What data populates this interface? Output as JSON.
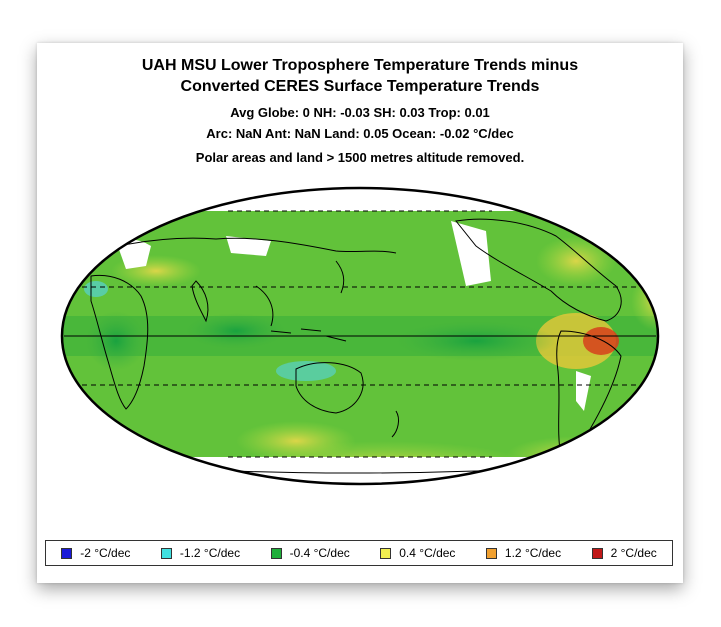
{
  "title": {
    "line1": "UAH MSU Lower Troposphere Temperature Trends minus",
    "line2": "Converted CERES Surface Temperature Trends",
    "stats1": "Avg Globe: 0  NH: -0.03  SH: 0.03  Trop: 0.01",
    "stats2": "Arc: NaN  Ant: NaN  Land: 0.05 Ocean: -0.02 °C/dec",
    "note": "Polar areas and land > 1500 metres altitude removed."
  },
  "legend": [
    {
      "label": "-2 °C/dec",
      "color": "#1a1ad8"
    },
    {
      "label": "-1.2 °C/dec",
      "color": "#40e0e0"
    },
    {
      "label": "-0.4 °C/dec",
      "color": "#1fae3a"
    },
    {
      "label": "0.4 °C/dec",
      "color": "#f0ee50"
    },
    {
      "label": "1.2 °C/dec",
      "color": "#f0a030"
    },
    {
      "label": "2 °C/dec",
      "color": "#c01818"
    }
  ],
  "map": {
    "projection": "Mollweide",
    "center_longitude": "180",
    "base_color": "#6ec93a",
    "masked_color": "#ffffff"
  }
}
